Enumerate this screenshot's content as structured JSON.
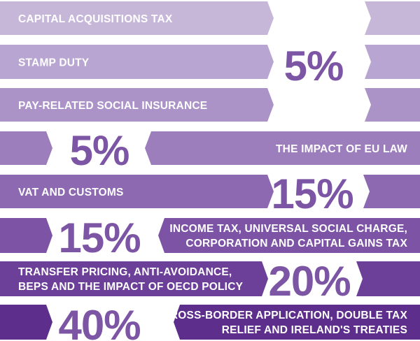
{
  "chart_data": {
    "type": "table",
    "title": "",
    "unit": "%",
    "rows": [
      {
        "label": "CAPITAL ACQUISITIONS TAX",
        "color": "#c6b7d9"
      },
      {
        "label": "STAMP DUTY",
        "color": "#b9a5d1"
      },
      {
        "label": "PAY-RELATED SOCIAL INSURANCE",
        "color": "#ab93c8"
      },
      {
        "label": "THE IMPACT OF EU LAW",
        "color": "#9c7ebd"
      },
      {
        "label": "VAT AND CUSTOMS",
        "color": "#8c69b1"
      },
      {
        "label": "INCOME TAX, UNIVERSAL SOCIAL CHARGE, CORPORATION AND CAPITAL GAINS TAX",
        "color": "#7c53a5"
      },
      {
        "label": "TRANSFER PRICING, ANTI-AVOIDANCE, BEPS AND THE IMPACT OF OECD POLICY",
        "color": "#6c3f98"
      },
      {
        "label": "CROSS-BORDER APPLICATION, DOUBLE TAX RELIEF AND IRELAND'S TREATIES",
        "color": "#5e2e8d"
      }
    ],
    "groups": [
      {
        "value": 5,
        "text": "5%",
        "rows": [
          0,
          1,
          2
        ]
      },
      {
        "value": 5,
        "text": "5%",
        "rows": [
          3
        ]
      },
      {
        "value": 15,
        "text": "15%",
        "rows": [
          4
        ]
      },
      {
        "value": 15,
        "text": "15%",
        "rows": [
          5
        ]
      },
      {
        "value": 20,
        "text": "20%",
        "rows": [
          6
        ]
      },
      {
        "value": 40,
        "text": "40%",
        "rows": [
          7
        ]
      }
    ]
  },
  "colors": {
    "percent_text": "#7d55a5",
    "label_text": "#ffffff",
    "background": "#ffffff"
  }
}
